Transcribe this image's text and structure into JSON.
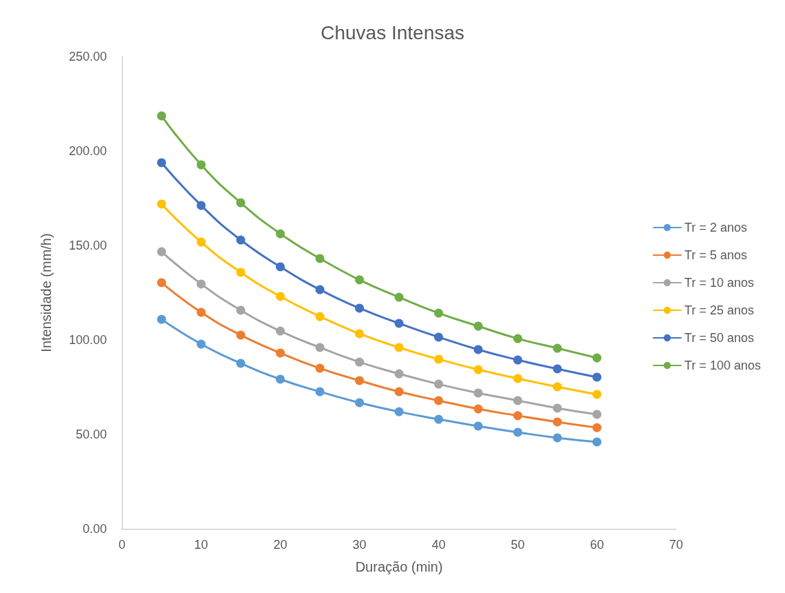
{
  "chart_data": {
    "type": "line",
    "title": "Chuvas Intensas",
    "xlabel": "Duração (min)",
    "ylabel": "Intensidade (mm/h)",
    "x": [
      5,
      10,
      15,
      20,
      25,
      30,
      35,
      40,
      45,
      50,
      55,
      60
    ],
    "xlim": [
      0,
      70
    ],
    "xticks": [
      0,
      10,
      20,
      30,
      40,
      50,
      60,
      70
    ],
    "ylim": [
      0,
      250
    ],
    "yticks": [
      {
        "value": 0,
        "label": "0.00"
      },
      {
        "value": 50,
        "label": "50.00"
      },
      {
        "value": 100,
        "label": "100.00"
      },
      {
        "value": 150,
        "label": "150.00"
      },
      {
        "value": 200,
        "label": "200.00"
      },
      {
        "value": 250,
        "label": "250.00"
      }
    ],
    "series": [
      {
        "name": "Tr = 2 anos",
        "color": "#5b9bd5",
        "values": [
          110.9,
          97.8,
          87.6,
          79.2,
          72.6,
          66.8,
          62.0,
          58.0,
          54.4,
          51.1,
          48.2,
          46.0
        ]
      },
      {
        "name": "Tr = 5 anos",
        "color": "#ed7d31",
        "values": [
          130.3,
          114.6,
          102.6,
          93.1,
          85.0,
          78.5,
          72.6,
          67.9,
          63.5,
          59.9,
          56.6,
          53.6
        ]
      },
      {
        "name": "Tr = 10 anos",
        "color": "#a5a5a5",
        "values": [
          146.7,
          129.6,
          115.7,
          104.7,
          96.0,
          88.3,
          82.1,
          76.6,
          71.9,
          67.9,
          63.9,
          60.6
        ]
      },
      {
        "name": "Tr = 25 anos",
        "color": "#ffc000",
        "values": [
          171.9,
          151.8,
          135.8,
          123.0,
          112.4,
          103.3,
          96.0,
          89.8,
          84.3,
          79.6,
          75.2,
          71.2
        ]
      },
      {
        "name": "Tr = 50 anos",
        "color": "#4472c4",
        "values": [
          193.8,
          171.2,
          152.9,
          138.7,
          126.6,
          116.8,
          108.8,
          101.5,
          94.9,
          89.4,
          84.7,
          80.3
        ]
      },
      {
        "name": "Tr = 100 anos",
        "color": "#70ad47",
        "values": [
          218.6,
          192.7,
          172.6,
          156.2,
          143.1,
          131.8,
          122.6,
          114.2,
          107.3,
          100.7,
          95.6,
          90.5
        ]
      }
    ],
    "marker": "circle",
    "line_style": "solid",
    "grid": false,
    "legend": "right"
  }
}
